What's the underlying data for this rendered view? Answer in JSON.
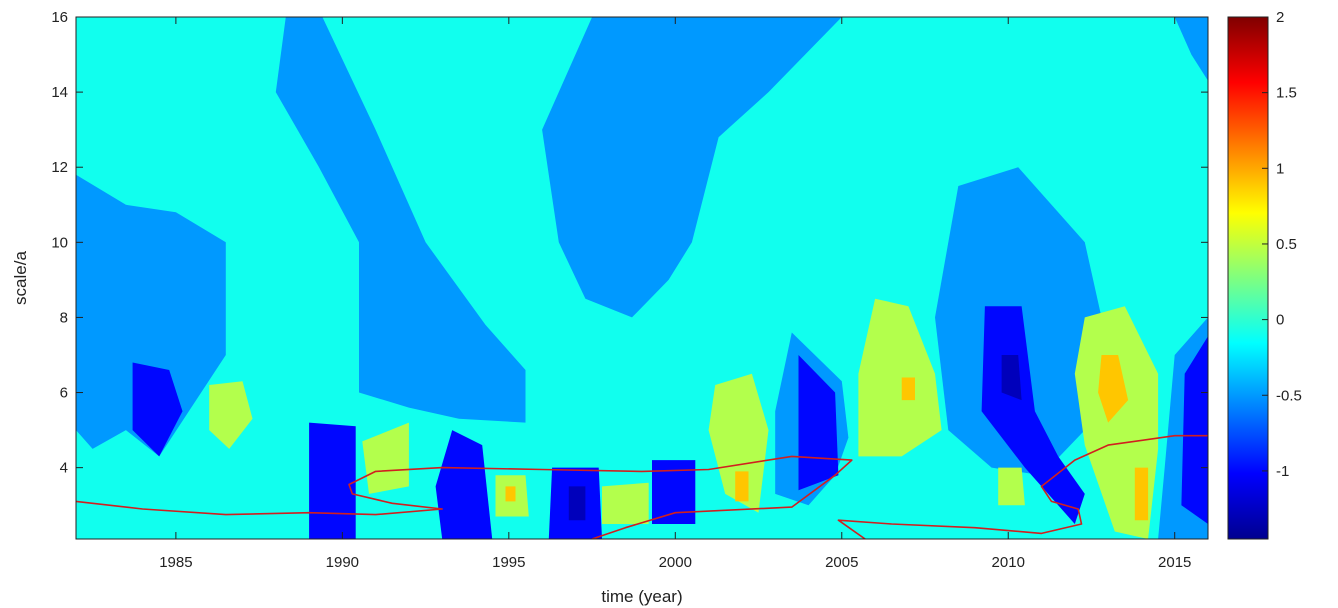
{
  "chart_data": {
    "type": "contour",
    "title": "",
    "xlabel": "time (year)",
    "ylabel": "scale/a",
    "xlim": [
      1982,
      2016
    ],
    "ylim": [
      2.1,
      16
    ],
    "x_ticks": [
      1985,
      1990,
      1995,
      2000,
      2005,
      2010,
      2015
    ],
    "y_ticks": [
      4,
      6,
      8,
      10,
      12,
      14,
      16
    ],
    "colorbar": {
      "colormap": "jet",
      "range": [
        -1.45,
        2
      ],
      "ticks": [
        -1,
        -0.5,
        0,
        0.5,
        1,
        1.5,
        2
      ],
      "tick_labels": [
        "-1",
        "-0.5",
        "0",
        "0.5",
        "1",
        "1.5",
        "2"
      ]
    },
    "contour_levels": [
      -1.25,
      -1.0,
      -0.5,
      -0.1,
      0.45,
      0.9,
      1.4
    ],
    "background_level": -0.1,
    "regions": [
      {
        "level": -0.5,
        "points": [
          [
            1982,
            11.8
          ],
          [
            1983.5,
            11
          ],
          [
            1985,
            10.8
          ],
          [
            1986.5,
            10
          ],
          [
            1986.5,
            7
          ],
          [
            1984.5,
            4.3
          ],
          [
            1983.5,
            5
          ],
          [
            1982.5,
            4.5
          ],
          [
            1982,
            5
          ]
        ]
      },
      {
        "level": -0.5,
        "points": [
          [
            1988.3,
            16
          ],
          [
            1989.4,
            16
          ],
          [
            1991,
            13
          ],
          [
            1992.5,
            10
          ],
          [
            1994.3,
            7.8
          ],
          [
            1995.5,
            6.6
          ],
          [
            1995.5,
            5.2
          ],
          [
            1993.5,
            5.3
          ],
          [
            1992,
            5.6
          ],
          [
            1990.5,
            6
          ],
          [
            1990.5,
            10
          ],
          [
            1989.3,
            12
          ],
          [
            1988,
            14
          ]
        ]
      },
      {
        "level": -0.5,
        "points": [
          [
            1997.5,
            16
          ],
          [
            2005,
            16
          ],
          [
            2002.8,
            14
          ],
          [
            2001.3,
            12.8
          ],
          [
            2000.5,
            10
          ],
          [
            1999.8,
            9
          ],
          [
            1998.7,
            8
          ],
          [
            1997.3,
            8.5
          ],
          [
            1996.5,
            10
          ],
          [
            1996,
            13
          ]
        ]
      },
      {
        "level": -0.5,
        "points": [
          [
            2003.5,
            7.6
          ],
          [
            2005,
            6.3
          ],
          [
            2005.2,
            4.8
          ],
          [
            2004.8,
            3.8
          ],
          [
            2004,
            3
          ],
          [
            2003,
            3.3
          ],
          [
            2003,
            5.5
          ]
        ]
      },
      {
        "level": -0.5,
        "points": [
          [
            2008.5,
            11.5
          ],
          [
            2010.3,
            12
          ],
          [
            2012.3,
            10
          ],
          [
            2012.8,
            8
          ],
          [
            2012.3,
            5
          ],
          [
            2011,
            3.8
          ],
          [
            2009.5,
            4
          ],
          [
            2008.2,
            5
          ],
          [
            2007.8,
            8
          ]
        ]
      },
      {
        "level": -0.5,
        "points": [
          [
            2015,
            16
          ],
          [
            2016,
            16
          ],
          [
            2016,
            14.3
          ],
          [
            2015.5,
            15
          ]
        ]
      },
      {
        "level": -0.5,
        "points": [
          [
            2015,
            7
          ],
          [
            2016,
            8
          ],
          [
            2016,
            2.1
          ],
          [
            2014.5,
            2.1
          ],
          [
            2014.7,
            4
          ]
        ]
      },
      {
        "level": -1.0,
        "points": [
          [
            1983.7,
            6.8
          ],
          [
            1984.8,
            6.6
          ],
          [
            1985.2,
            5.5
          ],
          [
            1984.5,
            4.3
          ],
          [
            1983.7,
            5
          ]
        ]
      },
      {
        "level": -1.0,
        "points": [
          [
            1989,
            5.2
          ],
          [
            1990.4,
            5.1
          ],
          [
            1990.4,
            2.1
          ],
          [
            1989,
            2.1
          ]
        ]
      },
      {
        "level": -1.0,
        "points": [
          [
            1993.3,
            5
          ],
          [
            1994.2,
            4.6
          ],
          [
            1994.5,
            2.1
          ],
          [
            1993,
            2.1
          ],
          [
            1992.8,
            3.5
          ]
        ]
      },
      {
        "level": -1.0,
        "points": [
          [
            1996.3,
            4
          ],
          [
            1997.7,
            4
          ],
          [
            1997.8,
            2.1
          ],
          [
            1996.2,
            2.1
          ]
        ]
      },
      {
        "level": -1.0,
        "points": [
          [
            1999.3,
            4.2
          ],
          [
            2000.6,
            4.2
          ],
          [
            2000.6,
            2.5
          ],
          [
            1999.3,
            2.5
          ]
        ]
      },
      {
        "level": -1.0,
        "points": [
          [
            2003.7,
            7
          ],
          [
            2004.8,
            6
          ],
          [
            2004.9,
            3.8
          ],
          [
            2003.7,
            3.4
          ]
        ]
      },
      {
        "level": -1.0,
        "points": [
          [
            2009.3,
            8.3
          ],
          [
            2010.4,
            8.3
          ],
          [
            2010.8,
            5.5
          ],
          [
            2011.5,
            4.3
          ],
          [
            2012.3,
            3.3
          ],
          [
            2012,
            2.5
          ],
          [
            2010.5,
            4
          ],
          [
            2009.2,
            5.5
          ]
        ]
      },
      {
        "level": -1.0,
        "points": [
          [
            2015.3,
            6.5
          ],
          [
            2016,
            7.5
          ],
          [
            2016,
            2.5
          ],
          [
            2015.2,
            3
          ]
        ]
      },
      {
        "level": -1.25,
        "points": [
          [
            2009.8,
            7
          ],
          [
            2010.3,
            7
          ],
          [
            2010.4,
            5.8
          ],
          [
            2009.8,
            6
          ]
        ]
      },
      {
        "level": -1.25,
        "points": [
          [
            1996.8,
            3.5
          ],
          [
            1997.3,
            3.5
          ],
          [
            1997.3,
            2.6
          ],
          [
            1996.8,
            2.6
          ]
        ]
      },
      {
        "level": 0.45,
        "points": [
          [
            1986,
            6.2
          ],
          [
            1987,
            6.3
          ],
          [
            1987.3,
            5.3
          ],
          [
            1986.6,
            4.5
          ],
          [
            1986,
            5
          ]
        ]
      },
      {
        "level": 0.45,
        "points": [
          [
            1990.6,
            4.7
          ],
          [
            1992,
            5.2
          ],
          [
            1992,
            3.5
          ],
          [
            1990.8,
            3.3
          ]
        ]
      },
      {
        "level": 0.45,
        "points": [
          [
            1994.6,
            3.8
          ],
          [
            1995.5,
            3.8
          ],
          [
            1995.6,
            2.7
          ],
          [
            1994.6,
            2.7
          ]
        ]
      },
      {
        "level": 0.45,
        "points": [
          [
            1997.8,
            3.5
          ],
          [
            1999.2,
            3.6
          ],
          [
            1999.2,
            2.5
          ],
          [
            1997.8,
            2.5
          ]
        ]
      },
      {
        "level": 0.45,
        "points": [
          [
            2001.2,
            6.2
          ],
          [
            2002.3,
            6.5
          ],
          [
            2002.8,
            5
          ],
          [
            2002.5,
            2.8
          ],
          [
            2001.5,
            3.3
          ],
          [
            2001,
            5
          ]
        ]
      },
      {
        "level": 0.45,
        "points": [
          [
            2006,
            8.5
          ],
          [
            2007,
            8.3
          ],
          [
            2007.8,
            6.5
          ],
          [
            2008,
            5
          ],
          [
            2006.8,
            4.3
          ],
          [
            2005.5,
            4.3
          ],
          [
            2005.5,
            6.5
          ]
        ]
      },
      {
        "level": 0.45,
        "points": [
          [
            2012.3,
            8
          ],
          [
            2013.5,
            8.3
          ],
          [
            2014.5,
            6.5
          ],
          [
            2014.5,
            4.5
          ],
          [
            2014.2,
            2.1
          ],
          [
            2013.2,
            2.3
          ],
          [
            2012.3,
            4.6
          ],
          [
            2012,
            6.5
          ]
        ]
      },
      {
        "level": 0.45,
        "points": [
          [
            2009.7,
            4
          ],
          [
            2010.4,
            4
          ],
          [
            2010.5,
            3
          ],
          [
            2009.7,
            3
          ]
        ]
      },
      {
        "level": 0.9,
        "points": [
          [
            2012.8,
            7
          ],
          [
            2013.3,
            7
          ],
          [
            2013.6,
            5.8
          ],
          [
            2013,
            5.2
          ],
          [
            2012.7,
            6
          ]
        ]
      },
      {
        "level": 0.9,
        "points": [
          [
            2013.8,
            4
          ],
          [
            2014.2,
            4
          ],
          [
            2014.2,
            2.6
          ],
          [
            2013.8,
            2.6
          ]
        ]
      },
      {
        "level": 0.9,
        "points": [
          [
            2006.8,
            6.4
          ],
          [
            2007.2,
            6.4
          ],
          [
            2007.2,
            5.8
          ],
          [
            2006.8,
            5.8
          ]
        ]
      },
      {
        "level": 0.9,
        "points": [
          [
            2001.8,
            3.9
          ],
          [
            2002.2,
            3.9
          ],
          [
            2002.2,
            3.1
          ],
          [
            2001.8,
            3.1
          ]
        ]
      },
      {
        "level": 0.9,
        "points": [
          [
            1994.9,
            3.5
          ],
          [
            1995.2,
            3.5
          ],
          [
            1995.2,
            3.1
          ],
          [
            1994.9,
            3.1
          ]
        ]
      }
    ],
    "significance_contours": [
      {
        "points": [
          [
            1982,
            3.1
          ],
          [
            1984,
            2.9
          ],
          [
            1986.5,
            2.75
          ],
          [
            1989,
            2.8
          ],
          [
            1991,
            2.75
          ],
          [
            1993,
            2.9
          ],
          [
            1991.5,
            3.05
          ],
          [
            1990.3,
            3.3
          ],
          [
            1990.2,
            3.55
          ],
          [
            1991,
            3.9
          ],
          [
            1993,
            4
          ],
          [
            1996,
            3.95
          ],
          [
            1999,
            3.9
          ],
          [
            2001,
            3.95
          ],
          [
            2003.5,
            4.3
          ],
          [
            2005.3,
            4.2
          ],
          [
            2004.8,
            3.8
          ],
          [
            2003.5,
            2.95
          ],
          [
            2000,
            2.8
          ],
          [
            1998.5,
            2.4
          ],
          [
            1997.5,
            2.1
          ]
        ]
      },
      {
        "points": [
          [
            2005.7,
            2.1
          ],
          [
            2004.9,
            2.6
          ],
          [
            2006.5,
            2.5
          ],
          [
            2009,
            2.4
          ],
          [
            2011,
            2.25
          ],
          [
            2012.2,
            2.5
          ],
          [
            2012.1,
            2.9
          ],
          [
            2011.3,
            3.1
          ],
          [
            2011,
            3.5
          ],
          [
            2012,
            4.2
          ],
          [
            2013,
            4.6
          ],
          [
            2015,
            4.85
          ],
          [
            2016,
            4.85
          ]
        ]
      }
    ]
  }
}
